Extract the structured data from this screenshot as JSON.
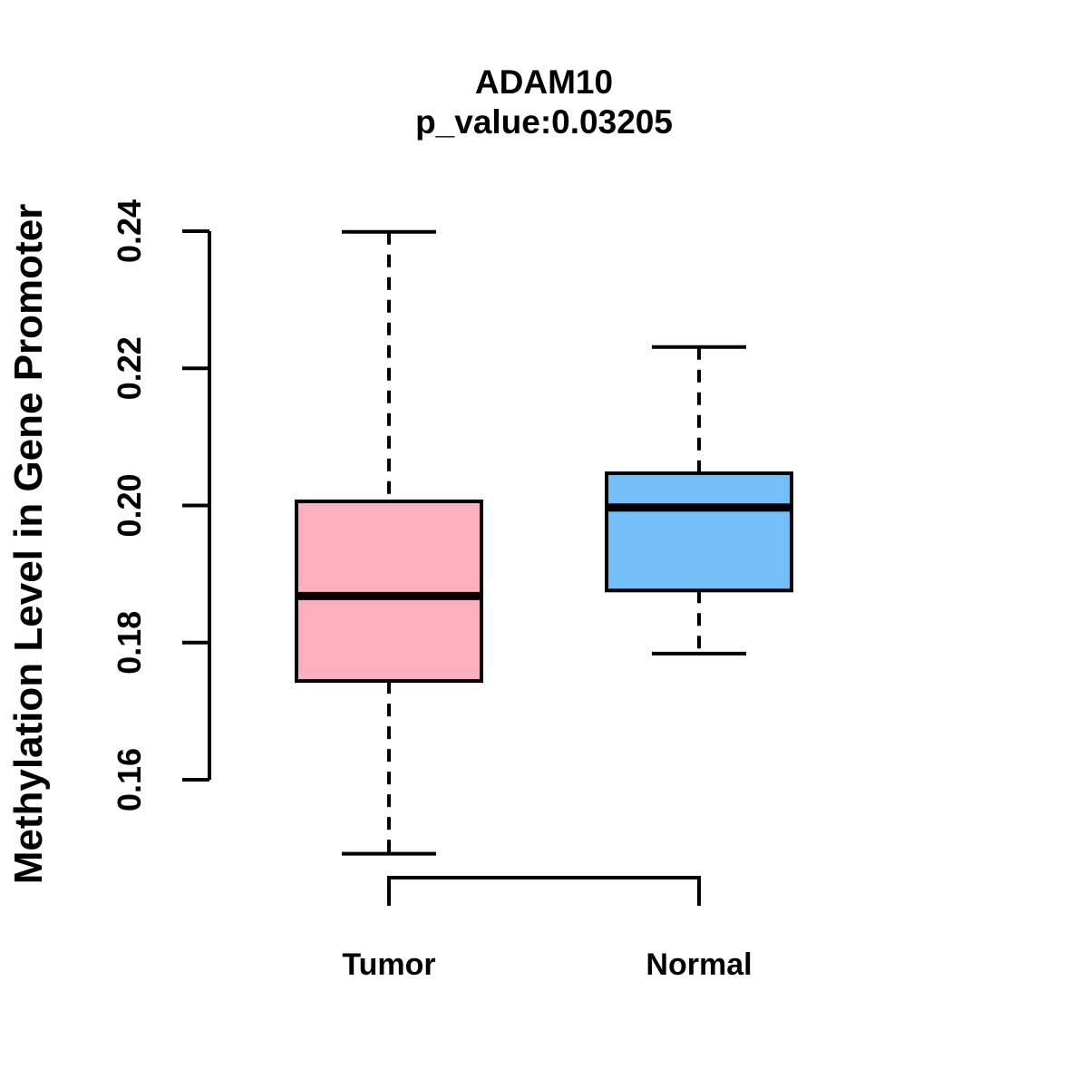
{
  "chart_data": {
    "type": "boxplot",
    "title": "ADAM10",
    "subtitle": "p_value:0.03205",
    "p_value": 0.03205,
    "ylabel": "Methylation Level in Gene Promoter",
    "xlabel": "",
    "categories": [
      "Tumor",
      "Normal"
    ],
    "y_ticks": [
      "0.16",
      "0.18",
      "0.20",
      "0.22",
      "0.24"
    ],
    "ylim": [
      0.16,
      0.24
    ],
    "grid": false,
    "legend": "none",
    "axis_color": "#000000",
    "whisker_style": "dashed",
    "series": [
      {
        "name": "Tumor",
        "color": "#FCB0BE",
        "border_color": "#000000",
        "whisker_low": 0.1492,
        "q1": 0.1744,
        "median": 0.1868,
        "q3": 0.2006,
        "whisker_high": 0.2399
      },
      {
        "name": "Normal",
        "color": "#74BEF8",
        "border_color": "#000000",
        "whisker_low": 0.1784,
        "q1": 0.1876,
        "median": 0.1997,
        "q3": 0.2047,
        "whisker_high": 0.2231
      }
    ],
    "comparison_bracket": {
      "from": "Tumor",
      "to": "Normal",
      "position": "bottom"
    }
  }
}
